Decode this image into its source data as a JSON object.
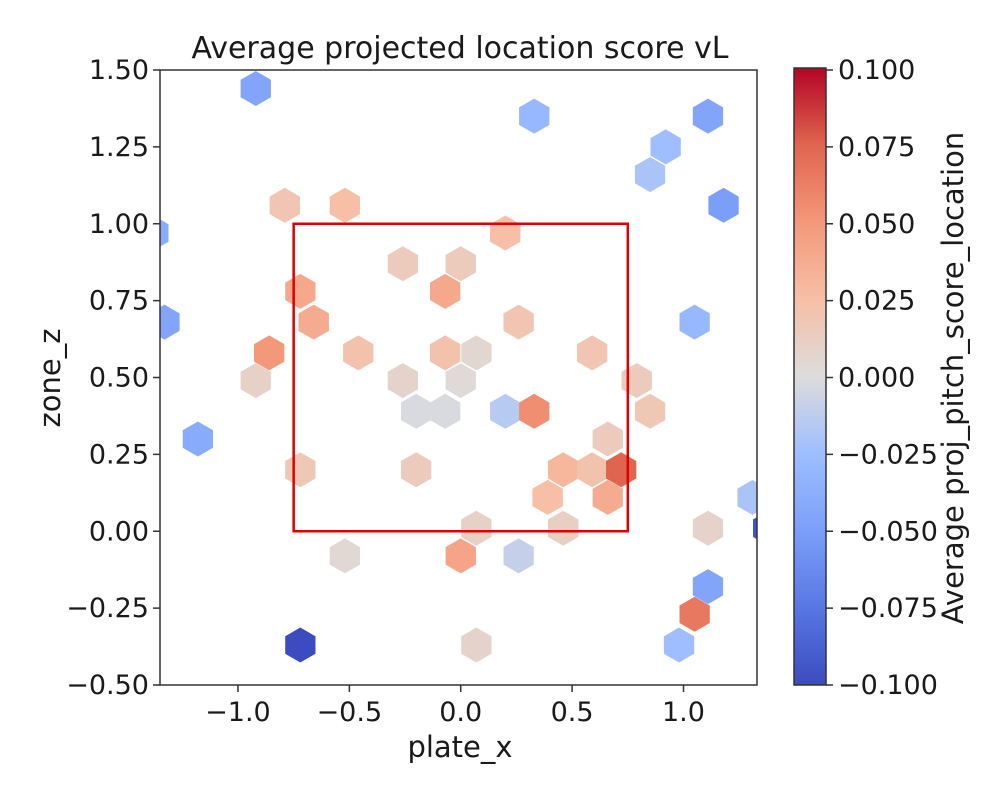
{
  "chart_data": {
    "type": "hexbin",
    "title": "Average projected location score vL",
    "xlabel": "plate_x",
    "ylabel": "zone_z",
    "colorbar_label": "Average proj_pitch_score_location",
    "xlim": [
      -1.35,
      1.33
    ],
    "ylim": [
      -0.5,
      1.5
    ],
    "x_ticks": [
      -1.0,
      -0.5,
      0.0,
      0.5,
      1.0
    ],
    "x_tick_labels": [
      "−1.0",
      "−0.5",
      "0.0",
      "0.5",
      "1.0"
    ],
    "y_ticks": [
      -0.5,
      -0.25,
      0.0,
      0.25,
      0.5,
      0.75,
      1.0,
      1.25,
      1.5
    ],
    "y_tick_labels": [
      "−0.50",
      "−0.25",
      "0.00",
      "0.25",
      "0.50",
      "0.75",
      "1.00",
      "1.25",
      "1.50"
    ],
    "colorbar": {
      "colormap": "coolwarm",
      "vmin": -0.1,
      "vmax": 0.1,
      "ticks": [
        0.1,
        0.075,
        0.05,
        0.025,
        0.0,
        -0.025,
        -0.05,
        -0.075,
        -0.1
      ],
      "tick_labels": [
        "0.100",
        "0.075",
        "0.050",
        "0.025",
        "0.000",
        "−0.025",
        "−0.050",
        "−0.075",
        "−0.100"
      ]
    },
    "strike_zone": {
      "x": [
        -0.75,
        0.75
      ],
      "z": [
        0.0,
        1.0
      ],
      "color": "#e00000"
    },
    "hexbins": [
      {
        "x": -0.92,
        "z": 1.44,
        "value": -0.045
      },
      {
        "x": 0.33,
        "z": 1.35,
        "value": -0.03
      },
      {
        "x": 1.11,
        "z": 1.35,
        "value": -0.045
      },
      {
        "x": 0.92,
        "z": 1.25,
        "value": -0.025
      },
      {
        "x": 0.85,
        "z": 1.16,
        "value": -0.02
      },
      {
        "x": 1.18,
        "z": 1.06,
        "value": -0.05
      },
      {
        "x": -0.79,
        "z": 1.06,
        "value": 0.02
      },
      {
        "x": -0.52,
        "z": 1.06,
        "value": 0.025
      },
      {
        "x": 0.2,
        "z": 0.97,
        "value": 0.025
      },
      {
        "x": -1.38,
        "z": 0.97,
        "value": -0.04
      },
      {
        "x": -0.26,
        "z": 0.87,
        "value": 0.015
      },
      {
        "x": 0.0,
        "z": 0.87,
        "value": 0.015
      },
      {
        "x": -0.72,
        "z": 0.78,
        "value": 0.04
      },
      {
        "x": -0.07,
        "z": 0.78,
        "value": 0.04
      },
      {
        "x": -0.66,
        "z": 0.68,
        "value": 0.038
      },
      {
        "x": 0.26,
        "z": 0.68,
        "value": 0.02
      },
      {
        "x": 1.05,
        "z": 0.68,
        "value": -0.03
      },
      {
        "x": -1.33,
        "z": 0.68,
        "value": -0.045
      },
      {
        "x": -0.86,
        "z": 0.58,
        "value": 0.05
      },
      {
        "x": -0.46,
        "z": 0.58,
        "value": 0.022
      },
      {
        "x": -0.07,
        "z": 0.58,
        "value": 0.022
      },
      {
        "x": 0.07,
        "z": 0.58,
        "value": 0.005
      },
      {
        "x": 0.59,
        "z": 0.58,
        "value": 0.02
      },
      {
        "x": -0.92,
        "z": 0.49,
        "value": 0.01
      },
      {
        "x": -0.26,
        "z": 0.49,
        "value": 0.008
      },
      {
        "x": 0.0,
        "z": 0.49,
        "value": 0.002
      },
      {
        "x": 0.79,
        "z": 0.49,
        "value": 0.015
      },
      {
        "x": -0.2,
        "z": 0.39,
        "value": -0.002
      },
      {
        "x": -0.07,
        "z": 0.39,
        "value": -0.002
      },
      {
        "x": 0.2,
        "z": 0.39,
        "value": -0.015
      },
      {
        "x": 0.33,
        "z": 0.39,
        "value": 0.055
      },
      {
        "x": 0.85,
        "z": 0.39,
        "value": 0.018
      },
      {
        "x": -1.18,
        "z": 0.3,
        "value": -0.04
      },
      {
        "x": 0.66,
        "z": 0.3,
        "value": 0.015
      },
      {
        "x": -0.72,
        "z": 0.2,
        "value": 0.018
      },
      {
        "x": -0.2,
        "z": 0.2,
        "value": 0.015
      },
      {
        "x": 0.46,
        "z": 0.2,
        "value": 0.03
      },
      {
        "x": 0.59,
        "z": 0.2,
        "value": 0.022
      },
      {
        "x": 0.72,
        "z": 0.2,
        "value": 0.075
      },
      {
        "x": 0.39,
        "z": 0.11,
        "value": 0.025
      },
      {
        "x": 0.66,
        "z": 0.11,
        "value": 0.038
      },
      {
        "x": 1.31,
        "z": 0.11,
        "value": -0.02
      },
      {
        "x": 0.07,
        "z": 0.01,
        "value": 0.01
      },
      {
        "x": 0.46,
        "z": 0.01,
        "value": 0.012
      },
      {
        "x": 1.11,
        "z": 0.01,
        "value": 0.008
      },
      {
        "x": 1.38,
        "z": 0.01,
        "value": -0.095
      },
      {
        "x": -0.52,
        "z": -0.08,
        "value": 0.004
      },
      {
        "x": 0.0,
        "z": -0.08,
        "value": 0.042
      },
      {
        "x": 0.26,
        "z": -0.08,
        "value": -0.01
      },
      {
        "x": 1.11,
        "z": -0.18,
        "value": -0.045
      },
      {
        "x": 1.05,
        "z": -0.27,
        "value": 0.065
      },
      {
        "x": -0.72,
        "z": -0.37,
        "value": -0.1
      },
      {
        "x": 0.07,
        "z": -0.37,
        "value": 0.008
      },
      {
        "x": 0.98,
        "z": -0.37,
        "value": -0.025
      }
    ]
  }
}
